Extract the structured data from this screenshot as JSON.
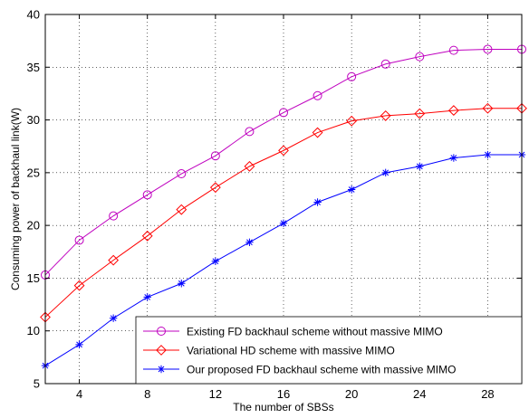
{
  "chart_data": {
    "type": "line",
    "xlabel": "The number of SBSs",
    "ylabel": "Consuming power of backhaul link(W)",
    "xlim": [
      2,
      30
    ],
    "ylim": [
      5,
      40
    ],
    "xticks": [
      4,
      8,
      12,
      16,
      20,
      24,
      28
    ],
    "yticks": [
      5,
      10,
      15,
      20,
      25,
      30,
      35,
      40
    ],
    "grid": true,
    "legend_position": "bottom-right",
    "x": [
      2,
      4,
      6,
      8,
      10,
      12,
      14,
      16,
      18,
      20,
      22,
      24,
      26,
      28,
      30
    ],
    "series": [
      {
        "name": "Existing FD backhaul scheme without massive MIMO",
        "color": "#bf00bf",
        "marker": "circle",
        "values": [
          15.3,
          18.6,
          20.9,
          22.9,
          24.9,
          26.6,
          28.9,
          30.7,
          32.3,
          34.1,
          35.3,
          36.0,
          36.6,
          36.7,
          36.7
        ]
      },
      {
        "name": "Variational HD scheme with massive MIMO",
        "color": "#ff0000",
        "marker": "diamond",
        "values": [
          11.3,
          14.3,
          16.7,
          19.0,
          21.5,
          23.6,
          25.6,
          27.1,
          28.8,
          29.9,
          30.4,
          30.6,
          30.9,
          31.1,
          31.1
        ]
      },
      {
        "name": "Our proposed FD backhaul scheme with massive MIMO",
        "color": "#0000ff",
        "marker": "star",
        "values": [
          6.7,
          8.7,
          11.2,
          13.2,
          14.5,
          16.6,
          18.4,
          20.2,
          22.2,
          23.4,
          25.0,
          25.6,
          26.4,
          26.7,
          26.7
        ]
      }
    ]
  }
}
